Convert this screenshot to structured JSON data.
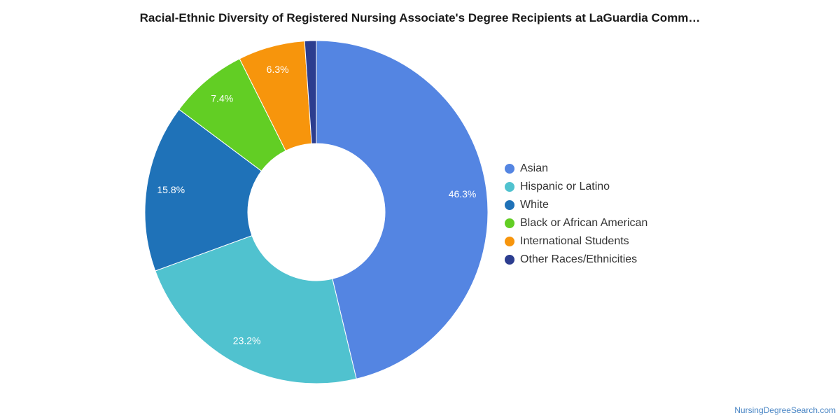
{
  "title": "Racial-Ethnic Diversity of Registered Nursing Associate's Degree Recipients at LaGuardia Comm…",
  "watermark": "NursingDegreeSearch.com",
  "chart_data": {
    "type": "pie",
    "donut": true,
    "title": "Racial-Ethnic Diversity of Registered Nursing Associate's Degree Recipients at LaGuardia Comm…",
    "legend_position": "right",
    "slices": [
      {
        "label": "Asian",
        "value": 46.3,
        "value_label": "46.3%",
        "color": "#5485e2"
      },
      {
        "label": "Hispanic or Latino",
        "value": 23.2,
        "value_label": "23.2%",
        "color": "#50c2cf"
      },
      {
        "label": "White",
        "value": 15.8,
        "value_label": "15.8%",
        "color": "#1f72b8"
      },
      {
        "label": "Black or African American",
        "value": 7.4,
        "value_label": "7.4%",
        "color": "#62ce24"
      },
      {
        "label": "International Students",
        "value": 6.3,
        "value_label": "6.3%",
        "color": "#f7950c"
      },
      {
        "label": "Other Races/Ethnicities",
        "value": 1.1,
        "value_label": "",
        "color": "#2c3d8f"
      }
    ]
  }
}
